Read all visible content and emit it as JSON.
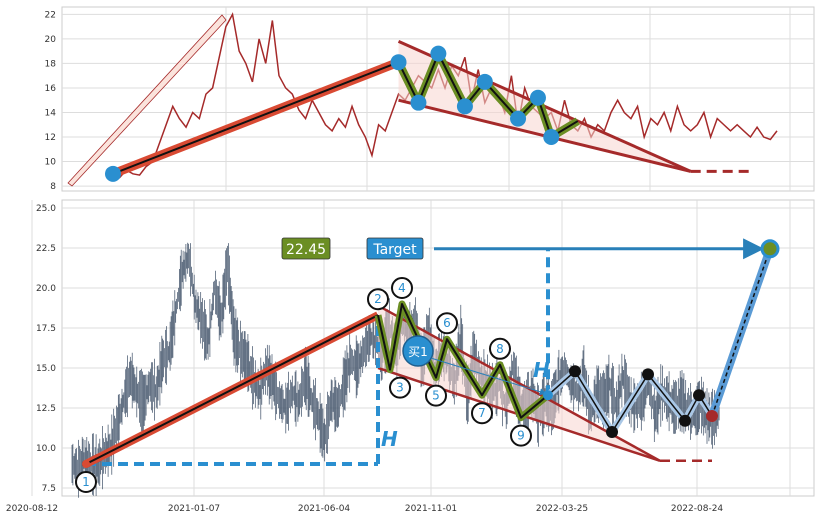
{
  "chart_data": [
    {
      "type": "line",
      "panel": "top",
      "ylim": [
        7.6,
        22.6
      ],
      "yticks": [
        "8",
        "10",
        "12",
        "14",
        "16",
        "18",
        "20",
        "22"
      ],
      "grid": true,
      "series": [
        {
          "color": "#a52a2a",
          "values": [
            9.0,
            8.7,
            9.3,
            9.0,
            8.9,
            9.6,
            10.0,
            11.5,
            13.0,
            14.5,
            13.5,
            12.8,
            14.0,
            13.5,
            15.5,
            16.0,
            18.5,
            21.0,
            22.0,
            19.0,
            18.0,
            16.5,
            20.0,
            18.0,
            21.5,
            17.0,
            16.0,
            15.5,
            14.2,
            13.5,
            15.0,
            14.0,
            13.0,
            12.5,
            13.5,
            12.8,
            14.5,
            13.0,
            12.0,
            10.5,
            13.0,
            12.5,
            14.0,
            15.5,
            15.0,
            16.0,
            17.0,
            16.5,
            16.0,
            17.5,
            16.0,
            17.8,
            17.0,
            18.5,
            15.0,
            17.5,
            14.8,
            16.0,
            15.5,
            14.0,
            17.0,
            13.0,
            16.0,
            14.5,
            14.0,
            13.5,
            14.0,
            12.5,
            15.0,
            13.0,
            12.5,
            13.5,
            12.0,
            13.0,
            12.5,
            14.0,
            15.0,
            14.0,
            13.5,
            14.5,
            12.0,
            13.5,
            13.0,
            14.0,
            12.5,
            14.5,
            13.0,
            12.5,
            13.0,
            14.0,
            12.0,
            13.5,
            13.0,
            12.5,
            13.0,
            12.5,
            12.0,
            12.8,
            12.0,
            11.8,
            12.5
          ]
        }
      ],
      "pattern_points": [
        {
          "x": 0,
          "y": 9.0
        },
        {
          "x": 43,
          "y": 18.1
        },
        {
          "x": 46,
          "y": 14.8
        },
        {
          "x": 49,
          "y": 18.8
        },
        {
          "x": 53,
          "y": 14.5
        },
        {
          "x": 56,
          "y": 16.5
        },
        {
          "x": 61,
          "y": 13.5
        },
        {
          "x": 64,
          "y": 15.2
        },
        {
          "x": 66,
          "y": 12.0
        },
        {
          "x": 70,
          "y": 13.3
        }
      ],
      "triangle": {
        "upper": [
          [
            43,
            19.8
          ],
          [
            87,
            9.2
          ]
        ],
        "lower": [
          [
            43,
            15.0
          ],
          [
            87,
            9.2
          ]
        ],
        "ext": [
          87,
          96,
          9.2
        ]
      }
    },
    {
      "type": "line",
      "panel": "bottom",
      "ylim": [
        7.0,
        25.5
      ],
      "yticks": [
        "7.5",
        "10.0",
        "12.5",
        "15.0",
        "17.5",
        "20.0",
        "22.5",
        "25.0"
      ],
      "xticks": [
        "2020-08-12",
        "2021-01-07",
        "2021-06-04",
        "2021-11-01",
        "2022-03-25",
        "2022-08-24"
      ],
      "grid": true,
      "price_label": "22.45",
      "target_label": "Target",
      "buy_label": "买1",
      "h_label": "H",
      "points": [
        {
          "label": "1",
          "y": 9.0
        },
        {
          "label": "2",
          "y": 18.3
        },
        {
          "label": "3",
          "y": 14.9
        },
        {
          "label": "4",
          "y": 19.0
        },
        {
          "label": "5",
          "y": 14.4
        },
        {
          "label": "6",
          "y": 16.8
        },
        {
          "label": "7",
          "y": 13.3
        },
        {
          "label": "8",
          "y": 15.2
        },
        {
          "label": "9",
          "y": 11.9
        }
      ],
      "projection": [
        13.3,
        14.8,
        11.0,
        14.6,
        11.7,
        13.3,
        12.0
      ],
      "target": 22.45
    }
  ]
}
